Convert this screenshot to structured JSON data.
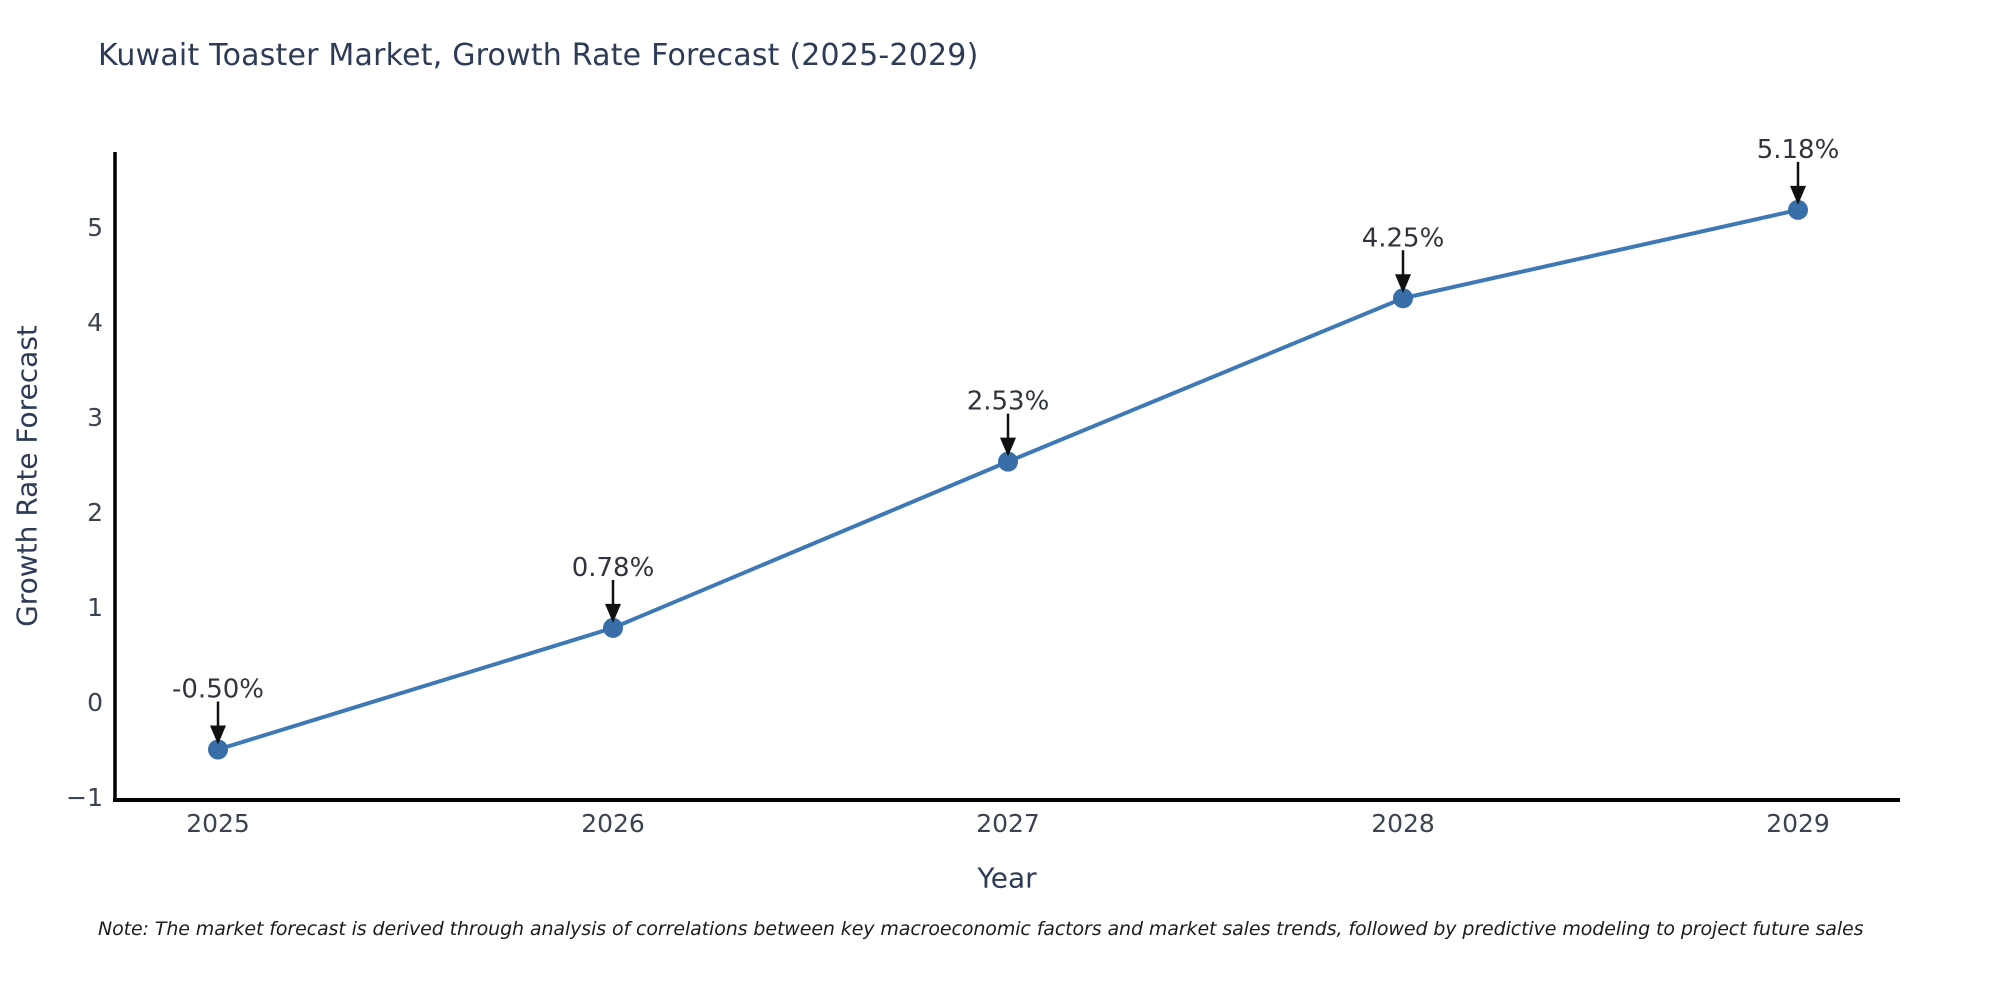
{
  "page": {
    "background": "#ffffff"
  },
  "header": {
    "title": "Kuwait Toaster Market, Growth Rate Forecast (2025-2029)"
  },
  "footer": {
    "note": "Note: The market forecast is derived through analysis of correlations between key macroeconomic factors and market sales trends, followed by predictive modeling to project future sales"
  },
  "chart_data": {
    "type": "line",
    "title": "Kuwait Toaster Market, Growth Rate Forecast (2025-2029)",
    "xlabel": "Year",
    "ylabel": "Growth Rate Forecast",
    "x": [
      2025,
      2026,
      2027,
      2028,
      2029
    ],
    "values": [
      -0.5,
      0.78,
      2.53,
      4.25,
      5.18
    ],
    "point_labels": [
      "-0.50%",
      "0.78%",
      "2.53%",
      "4.25%",
      "5.18%"
    ],
    "yticks": [
      -1,
      0,
      1,
      2,
      3,
      4,
      5
    ],
    "ylim": [
      -1.05,
      5.82
    ],
    "grid": false,
    "legend": false,
    "colors": {
      "line": "#3e79b6",
      "marker": "#386fa8",
      "annotation_text": "#30343c",
      "annotation_arrow": "#111111",
      "tick_label": "#3b4350",
      "axis_line": "#000000",
      "title": "#2e3b57",
      "axis_label": "#2e3b57"
    }
  }
}
